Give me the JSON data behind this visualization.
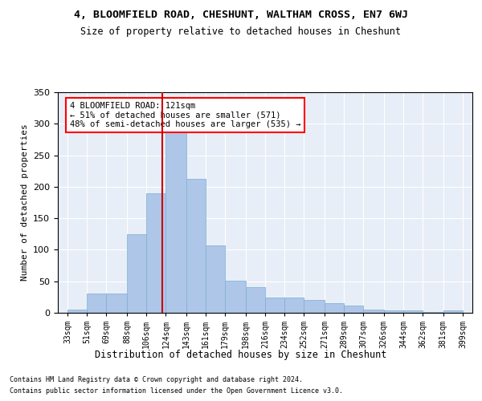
{
  "title1": "4, BLOOMFIELD ROAD, CHESHUNT, WALTHAM CROSS, EN7 6WJ",
  "title2": "Size of property relative to detached houses in Cheshunt",
  "xlabel": "Distribution of detached houses by size in Cheshunt",
  "ylabel": "Number of detached properties",
  "footer1": "Contains HM Land Registry data © Crown copyright and database right 2024.",
  "footer2": "Contains public sector information licensed under the Open Government Licence v3.0.",
  "annotation_line1": "4 BLOOMFIELD ROAD: 121sqm",
  "annotation_line2": "← 51% of detached houses are smaller (571)",
  "annotation_line3": "48% of semi-detached houses are larger (535) →",
  "bar_color": "#aec6e8",
  "bar_edge_color": "#7bafd4",
  "background_color": "#e8eef7",
  "grid_color": "#ffffff",
  "vline_color": "#cc0000",
  "vline_x": 121,
  "xlim": [
    24,
    408
  ],
  "ylim": [
    0,
    350
  ],
  "yticks": [
    0,
    50,
    100,
    150,
    200,
    250,
    300,
    350
  ],
  "bin_edges": [
    33,
    51,
    69,
    88,
    106,
    124,
    143,
    161,
    179,
    198,
    216,
    234,
    252,
    271,
    289,
    307,
    326,
    344,
    362,
    381,
    399
  ],
  "bar_heights": [
    5,
    30,
    30,
    125,
    190,
    295,
    213,
    107,
    51,
    41,
    24,
    24,
    20,
    15,
    11,
    5,
    4,
    4,
    1,
    4
  ],
  "tick_labels": [
    "33sqm",
    "51sqm",
    "69sqm",
    "88sqm",
    "106sqm",
    "124sqm",
    "143sqm",
    "161sqm",
    "179sqm",
    "198sqm",
    "216sqm",
    "234sqm",
    "252sqm",
    "271sqm",
    "289sqm",
    "307sqm",
    "326sqm",
    "344sqm",
    "362sqm",
    "381sqm",
    "399sqm"
  ]
}
